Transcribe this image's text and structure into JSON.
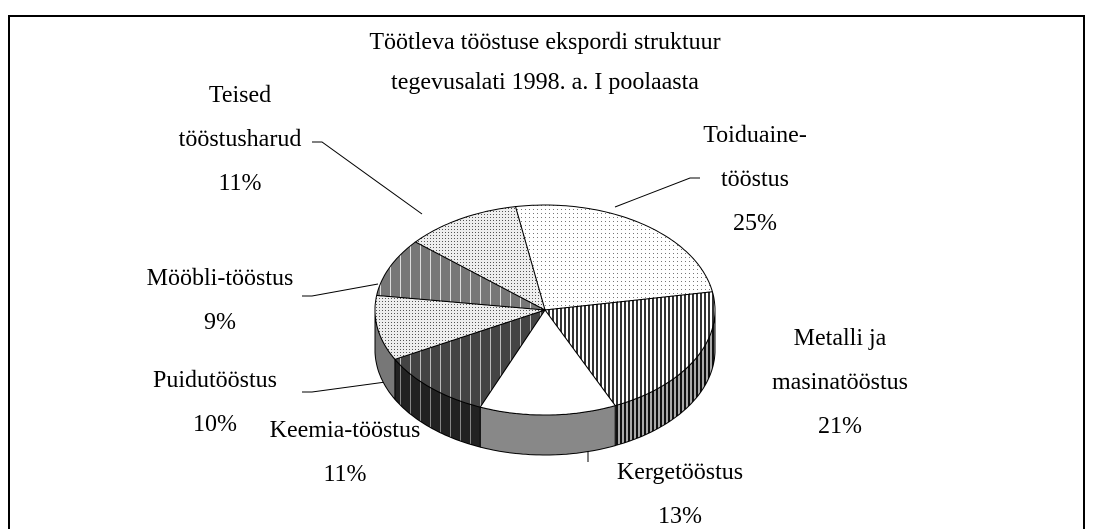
{
  "chart_data": {
    "type": "pie3d",
    "title": "Töötleva tööstuse ekspordi struktuur tegevusalati 1998. a. I poolaasta",
    "categories": [
      "Toiduaine-tööstus",
      "Metalli ja masinatööstus",
      "Kergetööstus",
      "Keemia-tööstus",
      "Puidutööstus",
      "Mööbli-tööstus",
      "Teised tööstusharud"
    ],
    "values": [
      25,
      21,
      13,
      11,
      10,
      9,
      11
    ],
    "value_labels": [
      "25%",
      "21%",
      "13%",
      "11%",
      "10%",
      "9%",
      "11%"
    ]
  }
}
